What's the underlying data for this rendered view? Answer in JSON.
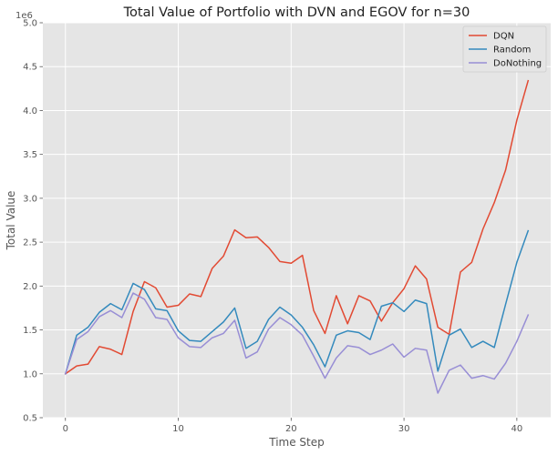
{
  "chart_data": {
    "type": "line",
    "title": "Total Value of Portfolio with DVN and EGOV for n=30",
    "xlabel": "Time Step",
    "ylabel": "Total Value",
    "y_offset_label": "1e6",
    "xlim": [
      -2,
      43
    ],
    "ylim": [
      500000,
      5000000
    ],
    "x_ticks": [
      0,
      10,
      20,
      30,
      40
    ],
    "y_ticks": [
      500000,
      1000000,
      1500000,
      2000000,
      2500000,
      3000000,
      3500000,
      4000000,
      4500000,
      5000000
    ],
    "y_tick_labels": [
      "0.5",
      "1.0",
      "1.5",
      "2.0",
      "2.5",
      "3.0",
      "3.5",
      "4.0",
      "4.5",
      "5.0"
    ],
    "grid": true,
    "legend_position": "top-right",
    "background_color": "#e5e5e5",
    "x": [
      0,
      1,
      2,
      3,
      4,
      5,
      6,
      7,
      8,
      9,
      10,
      11,
      12,
      13,
      14,
      15,
      16,
      17,
      18,
      19,
      20,
      21,
      22,
      23,
      24,
      25,
      26,
      27,
      28,
      29,
      30,
      31,
      32,
      33,
      34,
      35,
      36,
      37,
      38,
      39,
      40,
      41
    ],
    "series": [
      {
        "name": "DQN",
        "color": "#e24a33",
        "values": [
          1000000,
          1090000,
          1110000,
          1310000,
          1280000,
          1220000,
          1710000,
          2050000,
          1980000,
          1760000,
          1780000,
          1910000,
          1880000,
          2200000,
          2340000,
          2640000,
          2550000,
          2560000,
          2440000,
          2280000,
          2260000,
          2350000,
          1720000,
          1460000,
          1890000,
          1570000,
          1890000,
          1830000,
          1600000,
          1810000,
          1970000,
          2230000,
          2080000,
          1530000,
          1450000,
          2160000,
          2270000,
          2650000,
          2950000,
          3320000,
          3890000,
          4340000
        ]
      },
      {
        "name": "Random",
        "color": "#348abd",
        "values": [
          1000000,
          1440000,
          1530000,
          1700000,
          1800000,
          1730000,
          2030000,
          1960000,
          1740000,
          1720000,
          1490000,
          1380000,
          1370000,
          1480000,
          1590000,
          1750000,
          1290000,
          1370000,
          1620000,
          1760000,
          1670000,
          1530000,
          1330000,
          1080000,
          1440000,
          1490000,
          1470000,
          1390000,
          1770000,
          1810000,
          1710000,
          1840000,
          1800000,
          1030000,
          1440000,
          1510000,
          1300000,
          1370000,
          1300000,
          1790000,
          2270000,
          2630000
        ]
      },
      {
        "name": "DoNothing",
        "color": "#988ed5",
        "values": [
          1000000,
          1390000,
          1480000,
          1650000,
          1720000,
          1640000,
          1920000,
          1850000,
          1640000,
          1620000,
          1410000,
          1310000,
          1300000,
          1410000,
          1460000,
          1610000,
          1180000,
          1250000,
          1510000,
          1640000,
          1560000,
          1440000,
          1200000,
          950000,
          1180000,
          1320000,
          1300000,
          1220000,
          1270000,
          1340000,
          1190000,
          1290000,
          1270000,
          780000,
          1040000,
          1100000,
          950000,
          980000,
          940000,
          1120000,
          1370000,
          1670000
        ]
      }
    ]
  }
}
